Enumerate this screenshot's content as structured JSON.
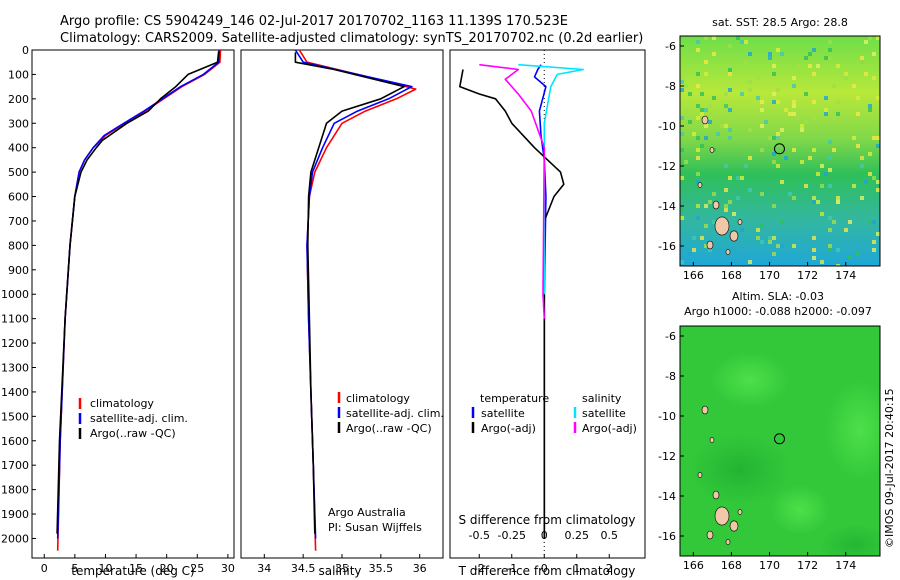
{
  "header": {
    "line1": "Argo profile: CS 5904249_146 02-Jul-2017 20170702_1163 11.139S 170.523E",
    "line2": "Climatology: CARS2009. Satellite-adjusted climatology: synTS_20170702.nc (0.2d earlier)"
  },
  "side_note": "©IMOS 09-Jul-2017 20:40:15",
  "colors": {
    "climatology": "#ff0000",
    "satellite": "#0000ff",
    "argo": "#000000",
    "salinity_satellite": "#00e5ff",
    "salinity_argo": "#ff00ff"
  },
  "chart_data": [
    {
      "type": "line",
      "panel": "temperature",
      "xlabel": "temperature (deg C)",
      "ylabel": "",
      "xlim": [
        -2,
        31
      ],
      "ylim": [
        2080,
        0
      ],
      "xticks": [
        0,
        5,
        10,
        15,
        20,
        25,
        30
      ],
      "yticks": [
        0,
        100,
        200,
        300,
        400,
        500,
        600,
        700,
        800,
        900,
        1000,
        1100,
        1200,
        1300,
        1400,
        1500,
        1600,
        1700,
        1800,
        1900,
        2000
      ],
      "legend": [
        "climatology",
        "satellite-adj. clim.",
        "Argo(..raw -QC)"
      ],
      "series": [
        {
          "name": "climatology",
          "color": "#ff0000",
          "x": [
            28.8,
            28.7,
            26.2,
            22.5,
            19.5,
            16.5,
            13.2,
            10.0,
            8.0,
            6.6,
            5.7,
            5.0,
            4.2,
            3.4,
            2.6,
            2.2
          ],
          "y": [
            0,
            50,
            100,
            150,
            200,
            250,
            300,
            350,
            400,
            450,
            500,
            600,
            800,
            1100,
            1600,
            2050
          ]
        },
        {
          "name": "satellite-adj. clim.",
          "color": "#0000ff",
          "x": [
            28.6,
            28.5,
            26.0,
            22.3,
            19.3,
            16.3,
            13.0,
            9.8,
            8.0,
            6.6,
            5.7,
            5.0,
            4.2,
            3.4,
            2.6,
            2.2
          ],
          "y": [
            0,
            50,
            100,
            150,
            200,
            250,
            300,
            350,
            400,
            450,
            500,
            600,
            800,
            1100,
            1600,
            2000
          ]
        },
        {
          "name": "Argo(..raw -QC)",
          "color": "#000000",
          "x": [
            28.5,
            28.3,
            23.5,
            21.5,
            19.0,
            17.0,
            13.5,
            9.5,
            8.5,
            7.0,
            6.0,
            5.0,
            4.2,
            3.4,
            2.5,
            2.1
          ],
          "y": [
            5,
            50,
            100,
            150,
            200,
            250,
            300,
            370,
            400,
            450,
            500,
            600,
            800,
            1100,
            1600,
            1980
          ]
        }
      ]
    },
    {
      "type": "line",
      "panel": "salinity",
      "xlabel": "salinity",
      "xlim": [
        33.7,
        36.3
      ],
      "ylim": [
        2080,
        0
      ],
      "xticks": [
        34,
        34.5,
        35,
        35.5,
        36
      ],
      "xticklabels": [
        "34",
        "34.5",
        "35",
        "35.5",
        "36"
      ],
      "legend": [
        "climatology",
        "satellite-adj. clim.",
        "Argo(..raw -QC)"
      ],
      "annotation": [
        "Argo Australia",
        "PI: Susan Wijffels"
      ],
      "series": [
        {
          "name": "climatology",
          "color": "#ff0000",
          "x": [
            34.45,
            34.55,
            35.2,
            35.95,
            35.7,
            35.3,
            35.0,
            34.8,
            34.65,
            34.58,
            34.55,
            34.57,
            34.6,
            34.63,
            34.66
          ],
          "y": [
            0,
            50,
            100,
            160,
            200,
            250,
            300,
            400,
            500,
            600,
            800,
            1100,
            1400,
            1700,
            2050
          ]
        },
        {
          "name": "satellite-adj. clim.",
          "color": "#0000ff",
          "x": [
            34.4,
            34.5,
            35.2,
            35.9,
            35.6,
            35.2,
            34.9,
            34.75,
            34.62,
            34.58,
            34.55,
            34.57,
            34.6,
            34.63,
            34.66
          ],
          "y": [
            0,
            50,
            100,
            150,
            200,
            250,
            300,
            400,
            500,
            600,
            800,
            1100,
            1400,
            1700,
            2000
          ]
        },
        {
          "name": "Argo(..raw -QC)",
          "color": "#000000",
          "x": [
            34.4,
            34.4,
            34.9,
            35.8,
            35.5,
            35.0,
            34.8,
            34.7,
            34.6,
            34.57,
            34.56,
            34.58,
            34.6,
            34.63,
            34.65
          ],
          "y": [
            10,
            50,
            80,
            150,
            200,
            250,
            300,
            400,
            500,
            600,
            800,
            1100,
            1400,
            1700,
            1980
          ]
        }
      ]
    },
    {
      "type": "line",
      "panel": "differences",
      "xlabel": "T difference from climatology",
      "x2label": "S difference from climatology",
      "xlim": [
        -2.9,
        3.1
      ],
      "x2lim": [
        -0.725,
        0.775
      ],
      "ylim": [
        2080,
        0
      ],
      "xticks": [
        -2,
        -1,
        0,
        1,
        2
      ],
      "x2ticks": [
        -0.5,
        -0.25,
        0,
        0.25,
        0.5
      ],
      "x2ticklabels": [
        "-0.5",
        "-0.25",
        "0",
        "0.25",
        "0.5"
      ],
      "legend_left_title": "temperature",
      "legend_right_title": "salinity",
      "legend_left": [
        "satellite",
        "Argo(-adj)"
      ],
      "legend_right": [
        "satellite",
        "Argo(-adj)"
      ],
      "series": [
        {
          "name": "temperature satellite",
          "color": "#0000ff",
          "x": [
            -0.1,
            -0.2,
            -0.3,
            0.05,
            -0.15,
            -0.1,
            0.0,
            0.05,
            0.0,
            0.0,
            0.0
          ],
          "y": [
            60,
            80,
            110,
            150,
            250,
            350,
            450,
            600,
            1000,
            1500,
            2000
          ]
        },
        {
          "name": "temperature Argo(-adj)",
          "color": "#000000",
          "x": [
            -2.5,
            -2.6,
            -2.0,
            -1.5,
            -1.2,
            -1.0,
            -0.3,
            0.5,
            0.6,
            0.3,
            0.0,
            0.0,
            0.0
          ],
          "y": [
            80,
            150,
            180,
            200,
            250,
            300,
            400,
            500,
            550,
            600,
            700,
            1200,
            2000
          ]
        },
        {
          "name": "salinity satellite",
          "color": "#00e5ff",
          "x": [
            -0.2,
            0.3,
            0.1,
            0.05,
            0.0,
            0.0,
            0.0
          ],
          "y": [
            60,
            80,
            100,
            150,
            300,
            500,
            1000
          ]
        },
        {
          "name": "salinity Argo(-adj)",
          "color": "#ff00ff",
          "x": [
            -0.5,
            -0.2,
            -0.3,
            -0.2,
            -0.1,
            0.0,
            -0.01,
            0.0
          ],
          "y": [
            60,
            80,
            120,
            180,
            250,
            400,
            1000,
            1100
          ]
        }
      ]
    },
    {
      "type": "heatmap",
      "panel": "sst_map",
      "title": "sat. SST: 28.5 Argo: 28.8",
      "xlim": [
        165.3,
        175.8
      ],
      "ylim": [
        -17,
        -5.5
      ],
      "xticks": [
        166,
        168,
        170,
        172,
        174
      ],
      "yticks": [
        -6,
        -8,
        -10,
        -12,
        -14,
        -16
      ],
      "marker": {
        "lon": 170.523,
        "lat": -11.139
      }
    },
    {
      "type": "heatmap",
      "panel": "sla_map",
      "title_line1": "Altim. SLA: -0.03",
      "title_line2": "Argo h1000: -0.088 h2000: -0.097",
      "xlim": [
        165.3,
        175.8
      ],
      "ylim": [
        -17,
        -5.5
      ],
      "xticks": [
        166,
        168,
        170,
        172,
        174
      ],
      "yticks": [
        -6,
        -8,
        -10,
        -12,
        -14,
        -16
      ],
      "marker": {
        "lon": 170.523,
        "lat": -11.139
      }
    }
  ]
}
